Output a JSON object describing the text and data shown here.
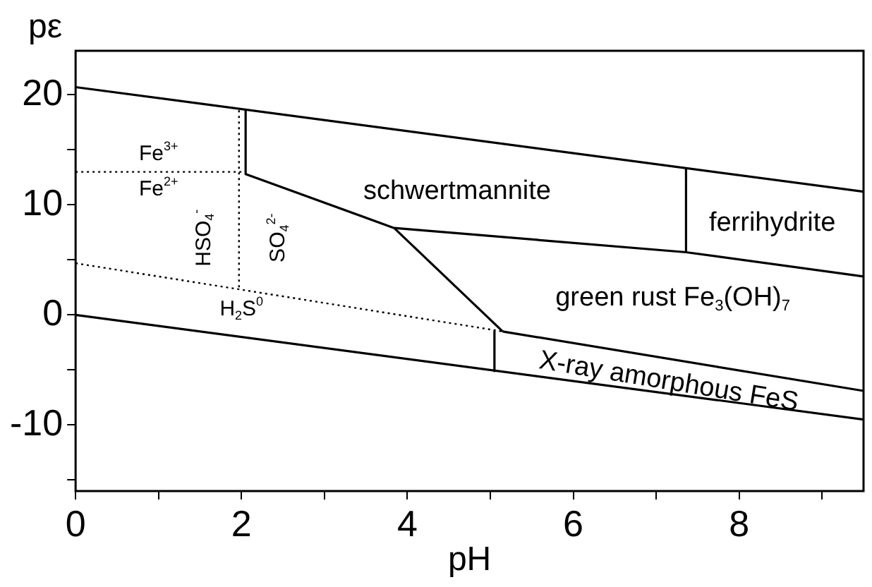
{
  "chart_data": {
    "type": "line",
    "xlabel": "pH",
    "ylabel": "pε",
    "xlim": [
      0,
      9.5
    ],
    "ylim": [
      -16,
      24
    ],
    "xticks": [
      0,
      {
        "value": 1,
        "label": null
      },
      2,
      {
        "value": 3,
        "label": null
      },
      4,
      {
        "value": 5,
        "label": null
      },
      6,
      {
        "value": 7,
        "label": null
      },
      8,
      {
        "value": 9,
        "label": null
      }
    ],
    "yticks": [
      {
        "value": -15,
        "label": null
      },
      -10,
      {
        "value": -5,
        "label": null
      },
      0,
      {
        "value": 5,
        "label": null
      },
      10,
      {
        "value": 15,
        "label": null
      },
      20
    ],
    "grid": false,
    "legend": false,
    "marker": "none",
    "series": [
      {
        "color": "#000000",
        "line_style": "solid",
        "x": [
          0,
          9.5
        ],
        "values": [
          20.7,
          11.2
        ]
      },
      {
        "color": "#000000",
        "line_style": "solid",
        "x": [
          0,
          9.5
        ],
        "values": [
          0,
          -9.5
        ]
      },
      {
        "color": "#000000",
        "line_style": "dotted",
        "x": [
          0,
          2
        ],
        "values": [
          13,
          13
        ]
      },
      {
        "color": "#000000",
        "line_style": "dotted",
        "x": [
          1.97,
          1.97
        ],
        "values": [
          18.6,
          2.5
        ]
      },
      {
        "color": "#000000",
        "line_style": "dotted",
        "x": [
          0,
          5.15
        ],
        "values": [
          4.7,
          -1.5
        ]
      },
      {
        "color": "#000000",
        "line_style": "solid",
        "x": [
          2.05,
          2.05
        ],
        "values": [
          18.6,
          12.8
        ]
      },
      {
        "color": "#000000",
        "line_style": "solid",
        "x": [
          2.05,
          3.84,
          5.15
        ],
        "values": [
          12.8,
          7.9,
          -1.5
        ]
      },
      {
        "color": "#000000",
        "line_style": "solid",
        "x": [
          3.84,
          7.36,
          9.5
        ],
        "values": [
          7.9,
          5.7,
          3.5
        ]
      },
      {
        "color": "#000000",
        "line_style": "solid",
        "x": [
          7.36,
          7.36
        ],
        "values": [
          5.7,
          13.3
        ]
      },
      {
        "color": "#000000",
        "line_style": "solid",
        "x": [
          5.15,
          9.5
        ],
        "values": [
          -1.5,
          -6.9
        ]
      },
      {
        "color": "#000000",
        "line_style": "solid",
        "x": [
          5.05,
          5.05
        ],
        "values": [
          -1.5,
          -5.1
        ]
      }
    ],
    "annotations": [
      "Fe$^{3+}$",
      "Fe$^{2+}$",
      "HSO$_{4}$$^{-}$",
      "SO$_{4}$$^{2-}$",
      "H$_{2}$S$^{0}$",
      "schwertmannite",
      "ferrihydrite",
      "green rust Fe$_{3}$(OH)$_{7}$",
      "X-ray amorphous FeS"
    ]
  }
}
